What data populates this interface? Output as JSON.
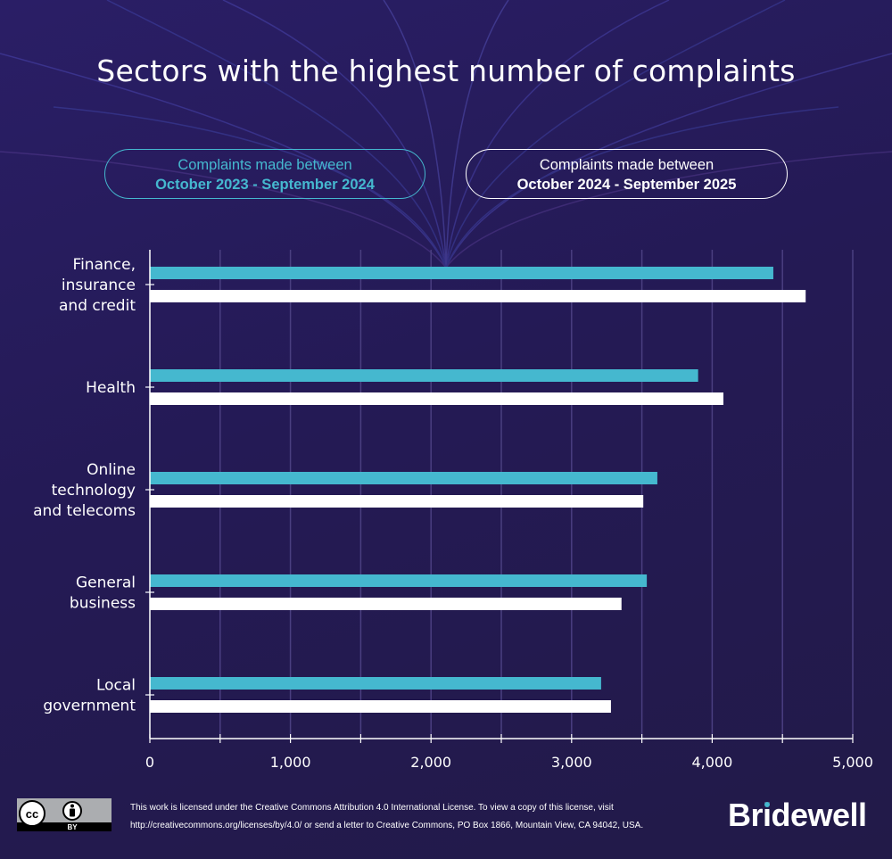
{
  "title": "Sectors with the highest number of complaints",
  "legend": [
    {
      "line1": "Complaints made between",
      "line2": "October 2023 - September 2024",
      "color": "#45b8cf"
    },
    {
      "line1": "Complaints made between",
      "line2": "October 2024 - September 2025",
      "color": "#ffffff"
    }
  ],
  "chart_data": {
    "type": "bar",
    "orientation": "horizontal",
    "title": "Sectors with the highest number of complaints",
    "xlabel": "",
    "ylabel": "",
    "categories": [
      [
        "Finance,",
        "insurance",
        "and credit"
      ],
      [
        "Health"
      ],
      [
        "Online",
        "technology",
        "and telecoms"
      ],
      [
        "General",
        "business"
      ],
      [
        "Local",
        "government"
      ]
    ],
    "series": [
      {
        "name": "October 2023 - September 2024",
        "color": "#45b8cf",
        "values": [
          4435,
          3900,
          3610,
          3535,
          3210
        ]
      },
      {
        "name": "October 2024 - September 2025",
        "color": "#ffffff",
        "values": [
          4665,
          4080,
          3510,
          3355,
          3280
        ]
      }
    ],
    "xlim": [
      0,
      5000
    ],
    "xticks": [
      0,
      1000,
      2000,
      3000,
      4000,
      5000
    ],
    "xtick_labels": [
      "0",
      "1,000",
      "2,000",
      "3,000",
      "4,000",
      "5,000"
    ],
    "minor_xticks": [
      500,
      1500,
      2500,
      3500,
      4500
    ],
    "grid": true,
    "legend_position": "top"
  },
  "footer": {
    "license_badge": {
      "cc": "cc",
      "by": "BY"
    },
    "license_line1": "This work is licensed under the Creative Commons Attribution 4.0 International License. To view a copy of this license, visit",
    "license_line2": "http://creativecommons.org/licenses/by/4.0/ or send a letter to Creative Commons, PO Box 1866, Mountain View, CA 94042, USA.",
    "brand": "Bridewell"
  }
}
